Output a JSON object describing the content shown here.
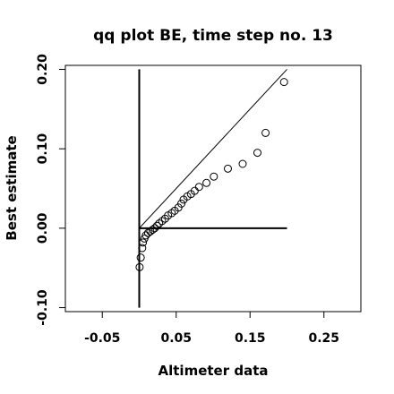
{
  "chart_data": {
    "type": "scatter",
    "title": "qq plot BE, time step no. 13",
    "xlabel": "Altimeter data",
    "ylabel": "Best estimate",
    "xlim": [
      -0.1,
      0.3
    ],
    "ylim": [
      -0.105,
      0.205
    ],
    "x_ticks": [
      -0.05,
      0.05,
      0.15,
      0.25
    ],
    "x_tick_labels": [
      "-0.05",
      "0.05",
      "0.15",
      "0.25"
    ],
    "y_ticks": [
      -0.1,
      0.0,
      0.1,
      0.2
    ],
    "y_tick_labels": [
      "-0.10",
      "0.00",
      "0.10",
      "0.20"
    ],
    "grid": false,
    "reference_lines": [
      {
        "kind": "identity",
        "from": [
          0,
          0
        ],
        "to": [
          0.2,
          0.2
        ]
      },
      {
        "kind": "vertical",
        "from": [
          0,
          -0.1
        ],
        "to": [
          0,
          0.2
        ]
      },
      {
        "kind": "horizontal",
        "from": [
          0,
          0
        ],
        "to": [
          0.2,
          0
        ]
      }
    ],
    "points": [
      {
        "x": 0.0005,
        "y": -0.049
      },
      {
        "x": 0.002,
        "y": -0.037
      },
      {
        "x": 0.004,
        "y": -0.025
      },
      {
        "x": 0.005,
        "y": -0.018
      },
      {
        "x": 0.007,
        "y": -0.013
      },
      {
        "x": 0.009,
        "y": -0.009
      },
      {
        "x": 0.012,
        "y": -0.006
      },
      {
        "x": 0.015,
        "y": -0.004
      },
      {
        "x": 0.018,
        "y": -0.002
      },
      {
        "x": 0.021,
        "y": 0.0
      },
      {
        "x": 0.024,
        "y": 0.003
      },
      {
        "x": 0.027,
        "y": 0.006
      },
      {
        "x": 0.031,
        "y": 0.009
      },
      {
        "x": 0.035,
        "y": 0.012
      },
      {
        "x": 0.039,
        "y": 0.016
      },
      {
        "x": 0.044,
        "y": 0.019
      },
      {
        "x": 0.048,
        "y": 0.022
      },
      {
        "x": 0.053,
        "y": 0.026
      },
      {
        "x": 0.057,
        "y": 0.031
      },
      {
        "x": 0.06,
        "y": 0.036
      },
      {
        "x": 0.065,
        "y": 0.04
      },
      {
        "x": 0.07,
        "y": 0.043
      },
      {
        "x": 0.075,
        "y": 0.047
      },
      {
        "x": 0.081,
        "y": 0.052
      },
      {
        "x": 0.091,
        "y": 0.057
      },
      {
        "x": 0.101,
        "y": 0.065
      },
      {
        "x": 0.12,
        "y": 0.075
      },
      {
        "x": 0.14,
        "y": 0.081
      },
      {
        "x": 0.16,
        "y": 0.095
      },
      {
        "x": 0.171,
        "y": 0.12
      },
      {
        "x": 0.196,
        "y": 0.184
      }
    ]
  }
}
